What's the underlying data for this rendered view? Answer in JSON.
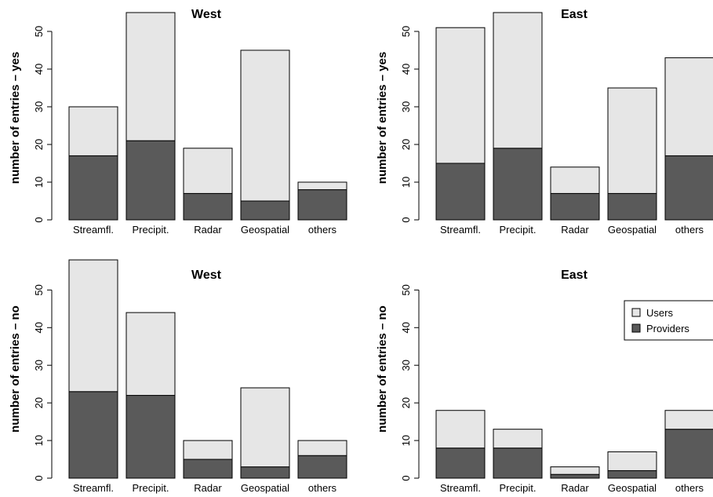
{
  "legend": {
    "entries": [
      {
        "label": "Users",
        "color": "#e6e6e6"
      },
      {
        "label": "Providers",
        "color": "#5a5a5a"
      }
    ]
  },
  "chart_data": [
    {
      "type": "bar",
      "stacked": true,
      "title": "West",
      "ylabel": "number of entries – yes",
      "categories": [
        "Streamfl.",
        "Precipit.",
        "Radar",
        "Geospatial",
        "others"
      ],
      "series": [
        {
          "name": "Providers",
          "color": "#5a5a5a",
          "values": [
            17,
            21,
            7,
            5,
            8
          ]
        },
        {
          "name": "Users",
          "color": "#e6e6e6",
          "values": [
            13,
            34,
            12,
            40,
            2
          ]
        }
      ],
      "yticks": [
        0,
        10,
        20,
        30,
        40,
        50
      ],
      "ylim": [
        0,
        55
      ]
    },
    {
      "type": "bar",
      "stacked": true,
      "title": "East",
      "ylabel": "number of entries – yes",
      "categories": [
        "Streamfl.",
        "Precipit.",
        "Radar",
        "Geospatial",
        "others"
      ],
      "series": [
        {
          "name": "Providers",
          "color": "#5a5a5a",
          "values": [
            15,
            19,
            7,
            7,
            17
          ]
        },
        {
          "name": "Users",
          "color": "#e6e6e6",
          "values": [
            36,
            36,
            7,
            28,
            26
          ]
        }
      ],
      "yticks": [
        0,
        10,
        20,
        30,
        40,
        50
      ],
      "ylim": [
        0,
        55
      ]
    },
    {
      "type": "bar",
      "stacked": true,
      "title": "West",
      "ylabel": "number of entries – no",
      "categories": [
        "Streamfl.",
        "Precipit.",
        "Radar",
        "Geospatial",
        "others"
      ],
      "series": [
        {
          "name": "Providers",
          "color": "#5a5a5a",
          "values": [
            23,
            22,
            5,
            3,
            6
          ]
        },
        {
          "name": "Users",
          "color": "#e6e6e6",
          "values": [
            35,
            22,
            5,
            21,
            4
          ]
        }
      ],
      "yticks": [
        0,
        10,
        20,
        30,
        40,
        50
      ],
      "ylim": [
        0,
        58
      ]
    },
    {
      "type": "bar",
      "stacked": true,
      "title": "East",
      "ylabel": "number of entries – no",
      "categories": [
        "Streamfl.",
        "Precipit.",
        "Radar",
        "Geospatial",
        "others"
      ],
      "series": [
        {
          "name": "Providers",
          "color": "#5a5a5a",
          "values": [
            8,
            8,
            1,
            2,
            13
          ]
        },
        {
          "name": "Users",
          "color": "#e6e6e6",
          "values": [
            10,
            5,
            2,
            5,
            5
          ]
        }
      ],
      "yticks": [
        0,
        10,
        20,
        30,
        40,
        50
      ],
      "ylim": [
        0,
        58
      ],
      "legend_position": "right"
    }
  ]
}
